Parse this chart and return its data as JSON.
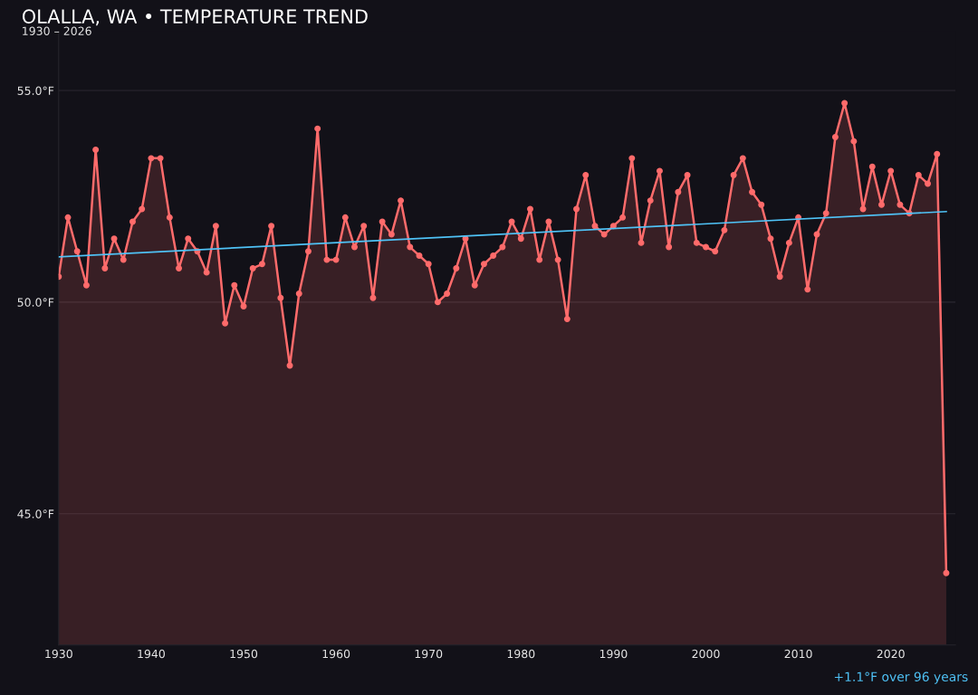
{
  "chart_data": {
    "type": "area",
    "title": "OLALLA, WA • TEMPERATURE TREND",
    "subtitle": "1930 – 2026",
    "annotations": [
      "+1.1°F over 96 years"
    ],
    "xlim": [
      1930,
      2027
    ],
    "xticks": [
      1930,
      1940,
      1950,
      1960,
      1970,
      1980,
      1990,
      2000,
      2010,
      2020
    ],
    "ylim": [
      41.9,
      56.4
    ],
    "yticks": [
      {
        "value": 45,
        "label": "45.0°F"
      },
      {
        "value": 50,
        "label": "50.0°F"
      },
      {
        "value": 55,
        "label": "55.0°F"
      }
    ],
    "grid": "y",
    "marker": "circle",
    "line_style": "solid",
    "legend": false,
    "series": [
      {
        "color": "#ff6b6b",
        "x": [
          1930,
          1931,
          1932,
          1933,
          1934,
          1935,
          1936,
          1937,
          1938,
          1939,
          1940,
          1941,
          1942,
          1943,
          1944,
          1945,
          1946,
          1947,
          1948,
          1949,
          1950,
          1951,
          1952,
          1953,
          1954,
          1955,
          1956,
          1957,
          1958,
          1959,
          1960,
          1961,
          1962,
          1963,
          1964,
          1965,
          1966,
          1967,
          1968,
          1969,
          1970,
          1971,
          1972,
          1973,
          1974,
          1975,
          1976,
          1977,
          1978,
          1979,
          1980,
          1981,
          1982,
          1983,
          1984,
          1985,
          1986,
          1987,
          1988,
          1989,
          1990,
          1991,
          1992,
          1993,
          1994,
          1995,
          1996,
          1997,
          1998,
          1999,
          2000,
          2001,
          2002,
          2003,
          2004,
          2005,
          2006,
          2007,
          2008,
          2009,
          2010,
          2011,
          2012,
          2013,
          2014,
          2015,
          2016,
          2017,
          2018,
          2019,
          2020,
          2021,
          2022,
          2023,
          2024,
          2025,
          2026
        ],
        "values": [
          50.6,
          52.0,
          51.2,
          50.4,
          53.6,
          50.8,
          51.5,
          51.0,
          51.9,
          52.2,
          53.4,
          53.4,
          52.0,
          50.8,
          51.5,
          51.2,
          50.7,
          51.8,
          49.5,
          50.4,
          49.9,
          50.8,
          50.9,
          51.8,
          50.1,
          48.5,
          50.2,
          51.2,
          54.1,
          51.0,
          51.0,
          52.0,
          51.3,
          51.8,
          50.1,
          51.9,
          51.6,
          52.4,
          51.3,
          51.1,
          50.9,
          50.0,
          50.2,
          50.8,
          51.5,
          50.4,
          50.9,
          51.1,
          51.3,
          51.9,
          51.5,
          52.2,
          51.0,
          51.9,
          51.0,
          49.6,
          52.2,
          53.0,
          51.8,
          51.6,
          51.8,
          52.0,
          53.4,
          51.4,
          52.4,
          53.1,
          51.3,
          52.6,
          53.0,
          51.4,
          51.3,
          51.2,
          51.7,
          53.0,
          53.4,
          52.6,
          52.3,
          51.5,
          50.6,
          51.4,
          52.0,
          50.3,
          51.6,
          52.1,
          53.9,
          54.7,
          53.8,
          52.2,
          53.2,
          52.3,
          53.1,
          52.3,
          52.1,
          53.0,
          52.8,
          53.5,
          43.6
        ]
      },
      {
        "type": "line",
        "color": "#4fc3f7",
        "marker": "none",
        "x": [
          1930,
          2026
        ],
        "values": [
          51.07,
          52.14
        ]
      }
    ]
  }
}
